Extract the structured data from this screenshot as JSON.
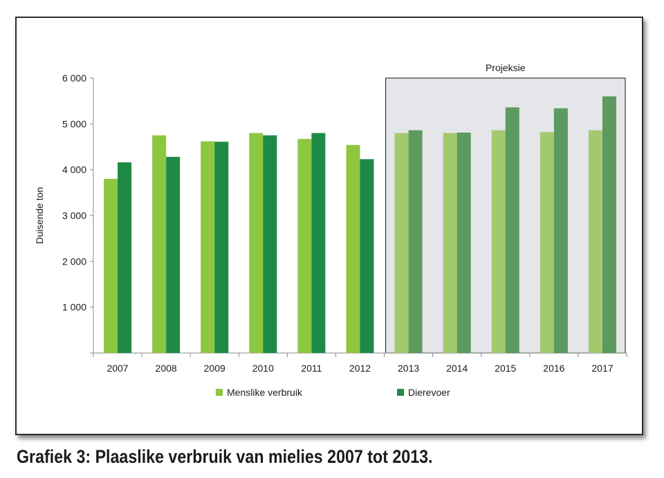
{
  "chart_data": {
    "type": "bar",
    "categories": [
      "2007",
      "2008",
      "2009",
      "2010",
      "2011",
      "2012",
      "2013",
      "2014",
      "2015",
      "2016",
      "2017"
    ],
    "series": [
      {
        "name": "Menslike verbruik",
        "color": "#8dc63f",
        "projection_color": "#a3c96e",
        "values": [
          3800,
          4750,
          4620,
          4800,
          4670,
          4540,
          4800,
          4800,
          4860,
          4820,
          4860
        ]
      },
      {
        "name": "Dierevoer",
        "color": "#1f8a45",
        "projection_color": "#5c9a5e",
        "values": [
          4160,
          4280,
          4610,
          4750,
          4800,
          4230,
          4860,
          4810,
          5360,
          5340,
          5600
        ]
      }
    ],
    "ylabel": "Duisende ton",
    "ylim": [
      0,
      6000
    ],
    "yticks": [
      0,
      1000,
      2000,
      3000,
      4000,
      5000,
      6000
    ],
    "ytick_labels": [
      "",
      "1 000",
      "2 000",
      "3 000",
      "4 000",
      "5 000",
      "6 000"
    ],
    "projection": {
      "label": "Projeksie",
      "from_category": "2013",
      "to_category": "2017",
      "shade_color": "#e4e6ea"
    },
    "legend_placement": "bottom",
    "grid": false
  },
  "caption": "Grafiek 3: Plaaslike verbruik van mielies 2007 tot 2013."
}
